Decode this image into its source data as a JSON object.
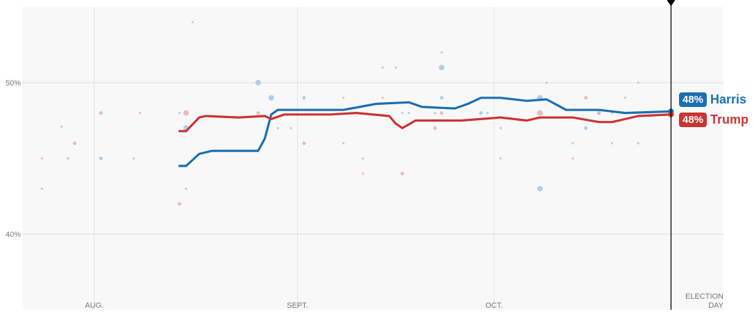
{
  "chart_data": {
    "type": "line",
    "ylim": [
      35,
      55
    ],
    "xlim": [
      "Jul 21",
      "Nov 5"
    ],
    "grid": true,
    "y_ticks": [
      {
        "value": 40,
        "label": "40%"
      },
      {
        "value": 50,
        "label": "50%"
      }
    ],
    "x_ticks": [
      {
        "date": "Aug 1",
        "label": "AUG."
      },
      {
        "date": "Sep 1",
        "label": "SEPT."
      },
      {
        "date": "Oct 1",
        "label": "OCT."
      }
    ],
    "end_label": [
      "ELECTION",
      "DAY"
    ],
    "marker_date": "Oct 28",
    "series": [
      {
        "name": "Harris",
        "final_label": "48%",
        "color": "#1b6fb3",
        "dot_color": "#9cc4e6",
        "points": [
          [
            "Aug 14",
            44.5
          ],
          [
            "Aug 15",
            44.5
          ],
          [
            "Aug 17",
            45.3
          ],
          [
            "Aug 19",
            45.5
          ],
          [
            "Aug 26",
            45.5
          ],
          [
            "Aug 27",
            46.3
          ],
          [
            "Aug 28",
            47.9
          ],
          [
            "Aug 29",
            48.2
          ],
          [
            "Sep 2",
            48.2
          ],
          [
            "Sep 8",
            48.2
          ],
          [
            "Sep 13",
            48.6
          ],
          [
            "Sep 18",
            48.7
          ],
          [
            "Sep 20",
            48.4
          ],
          [
            "Sep 25",
            48.3
          ],
          [
            "Sep 27",
            48.6
          ],
          [
            "Sep 29",
            49.0
          ],
          [
            "Oct 2",
            49.0
          ],
          [
            "Oct 6",
            48.8
          ],
          [
            "Oct 9",
            48.9
          ],
          [
            "Oct 12",
            48.2
          ],
          [
            "Oct 17",
            48.2
          ],
          [
            "Oct 21",
            48.0
          ],
          [
            "Oct 28",
            48.1
          ]
        ],
        "polls": [
          [
            "Jul 27",
            47.1,
            1
          ],
          [
            "Jul 28",
            45,
            1
          ],
          [
            "Aug 2",
            45,
            2
          ],
          [
            "Aug 7",
            45,
            1
          ],
          [
            "Jul 24",
            43,
            1
          ],
          [
            "Aug 14",
            48,
            1
          ],
          [
            "Aug 15",
            47,
            3
          ],
          [
            "Aug 16",
            54,
            1
          ],
          [
            "Aug 15",
            43,
            1
          ],
          [
            "Aug 26",
            50,
            3
          ],
          [
            "Aug 28",
            49,
            3
          ],
          [
            "Sep 2",
            49,
            2
          ],
          [
            "Aug 31",
            47,
            1
          ],
          [
            "Sep 8",
            49,
            1
          ],
          [
            "Sep 11",
            45,
            1
          ],
          [
            "Sep 14",
            51,
            1
          ],
          [
            "Sep 16",
            51,
            1
          ],
          [
            "Sep 17",
            48,
            1
          ],
          [
            "Sep 18",
            48,
            1
          ],
          [
            "Sep 23",
            51,
            3
          ],
          [
            "Sep 23",
            52,
            1
          ],
          [
            "Sep 22",
            48,
            1
          ],
          [
            "Sep 23",
            49,
            2
          ],
          [
            "Sep 29",
            48,
            2
          ],
          [
            "Sep 30",
            48,
            1
          ],
          [
            "Oct 2",
            45,
            1
          ],
          [
            "Oct 8",
            43,
            3
          ],
          [
            "Oct 8",
            49,
            3
          ],
          [
            "Oct 13",
            46,
            1
          ],
          [
            "Oct 15",
            47,
            2
          ],
          [
            "Oct 17",
            48,
            2
          ],
          [
            "Oct 21",
            49,
            1
          ],
          [
            "Oct 23",
            46,
            1
          ],
          [
            "Oct 19",
            48,
            1
          ]
        ]
      },
      {
        "name": "Trump",
        "final_label": "48%",
        "color": "#cc3333",
        "dot_color": "#eea9a9",
        "points": [
          [
            "Aug 14",
            46.8
          ],
          [
            "Aug 15",
            46.8
          ],
          [
            "Aug 17",
            47.7
          ],
          [
            "Aug 18",
            47.8
          ],
          [
            "Aug 23",
            47.7
          ],
          [
            "Aug 27",
            47.8
          ],
          [
            "Aug 28",
            47.6
          ],
          [
            "Aug 30",
            47.9
          ],
          [
            "Sep 6",
            47.9
          ],
          [
            "Sep 10",
            48.0
          ],
          [
            "Sep 15",
            47.8
          ],
          [
            "Sep 16",
            47.3
          ],
          [
            "Sep 17",
            47.0
          ],
          [
            "Sep 19",
            47.5
          ],
          [
            "Sep 26",
            47.5
          ],
          [
            "Oct 2",
            47.7
          ],
          [
            "Oct 6",
            47.5
          ],
          [
            "Oct 8",
            47.7
          ],
          [
            "Oct 13",
            47.7
          ],
          [
            "Oct 17",
            47.4
          ],
          [
            "Oct 19",
            47.4
          ],
          [
            "Oct 23",
            47.8
          ],
          [
            "Oct 28",
            47.9
          ]
        ],
        "polls": [
          [
            "Jul 24",
            45,
            1
          ],
          [
            "Jul 28",
            45,
            1
          ],
          [
            "Jul 29",
            46,
            2
          ],
          [
            "Aug 2",
            48,
            2
          ],
          [
            "Aug 8",
            48,
            1
          ],
          [
            "Aug 14",
            42,
            2
          ],
          [
            "Aug 15",
            48,
            3
          ],
          [
            "Aug 26",
            48,
            2
          ],
          [
            "Aug 29",
            47,
            1
          ],
          [
            "Sep 2",
            46,
            2
          ],
          [
            "Sep 8",
            46,
            1
          ],
          [
            "Sep 11",
            44,
            1
          ],
          [
            "Sep 14",
            49,
            1
          ],
          [
            "Sep 17",
            44,
            2
          ],
          [
            "Sep 22",
            47,
            2
          ],
          [
            "Sep 23",
            48,
            2
          ],
          [
            "Oct 2",
            47,
            1
          ],
          [
            "Oct 9",
            50,
            1
          ],
          [
            "Oct 8",
            48,
            3
          ],
          [
            "Oct 13",
            45,
            1
          ],
          [
            "Oct 15",
            49,
            2
          ],
          [
            "Oct 17",
            48,
            2
          ],
          [
            "Oct 23",
            50,
            1
          ],
          [
            "Oct 19",
            46,
            1
          ]
        ]
      }
    ]
  }
}
